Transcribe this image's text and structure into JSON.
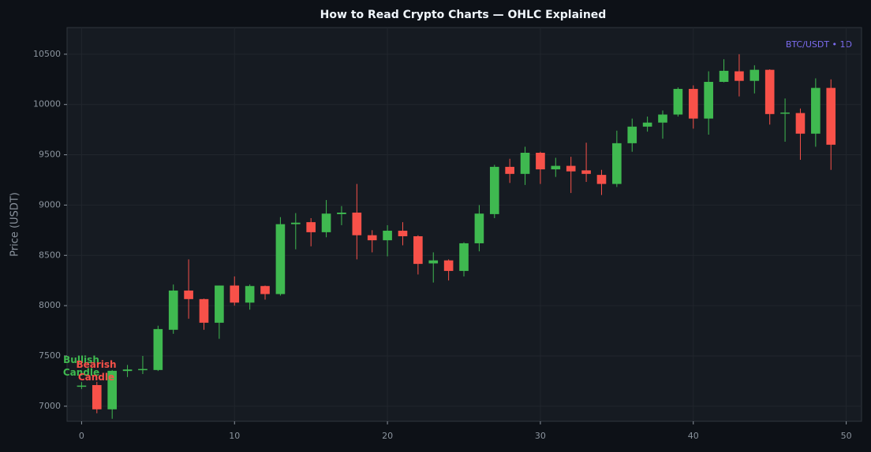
{
  "chart_data": {
    "type": "candlestick",
    "title": "How to Read Crypto Charts — OHLC Explained",
    "ylabel": "Price (USDT)",
    "label": "BTC/USDT • 1D",
    "label_color": "#7c6cf0",
    "up_color": "#3fb950",
    "down_color": "#f85149",
    "grid": true,
    "x": [
      0,
      1,
      2,
      3,
      4,
      5,
      6,
      7,
      8,
      9,
      10,
      11,
      12,
      13,
      14,
      15,
      16,
      17,
      18,
      19,
      20,
      21,
      22,
      23,
      24,
      25,
      26,
      27,
      28,
      29,
      30,
      31,
      32,
      33,
      34,
      35,
      36,
      37,
      38,
      39,
      40,
      41,
      42,
      43,
      44,
      45,
      46,
      47,
      48,
      49
    ],
    "open": [
      7195,
      7210,
      6969,
      7350,
      7360,
      7360,
      7760,
      8150,
      8065,
      7830,
      8200,
      8030,
      8195,
      8115,
      8810,
      8830,
      8730,
      8910,
      8925,
      8700,
      8650,
      8745,
      8690,
      8420,
      8450,
      8345,
      8620,
      8910,
      9380,
      9310,
      9520,
      9355,
      9390,
      9345,
      9300,
      9210,
      9615,
      9780,
      9820,
      9900,
      10155,
      9860,
      10225,
      10330,
      10235,
      10345,
      9910,
      9915,
      9710,
      10165
    ],
    "high": [
      7240,
      7243,
      7360,
      7410,
      7500,
      7800,
      8210,
      8460,
      8070,
      8200,
      8290,
      8210,
      8200,
      8880,
      8920,
      8870,
      9050,
      8990,
      9210,
      8750,
      8800,
      8830,
      8700,
      8530,
      8460,
      8630,
      9000,
      9400,
      9460,
      9580,
      9530,
      9470,
      9480,
      9620,
      9350,
      9740,
      9860,
      9880,
      9940,
      10170,
      10190,
      10330,
      10450,
      10500,
      10390,
      10350,
      10060,
      9960,
      10260,
      10250
    ],
    "low": [
      7170,
      6930,
      6875,
      7290,
      7320,
      7350,
      7720,
      7870,
      7760,
      7670,
      8000,
      7960,
      8060,
      8100,
      8560,
      8590,
      8680,
      8800,
      8460,
      8530,
      8490,
      8600,
      8310,
      8230,
      8250,
      8290,
      8540,
      8870,
      9220,
      9200,
      9210,
      9280,
      9120,
      9230,
      9100,
      9180,
      9530,
      9730,
      9660,
      9880,
      9760,
      9700,
      10220,
      10080,
      10110,
      9800,
      9630,
      9450,
      9580,
      9350
    ],
    "close": [
      7205,
      6969,
      7352,
      7365,
      7370,
      7767,
      8150,
      8065,
      7830,
      8200,
      8030,
      8195,
      8115,
      8810,
      8825,
      8730,
      8915,
      8925,
      8700,
      8650,
      8745,
      8690,
      8415,
      8450,
      8345,
      8620,
      8915,
      9380,
      9310,
      9520,
      9355,
      9390,
      9335,
      9310,
      9210,
      9615,
      9780,
      9820,
      9900,
      10155,
      9860,
      10225,
      10335,
      10235,
      10345,
      9905,
      9920,
      9710,
      10165,
      9600
    ],
    "xlim": [
      -0.95,
      51
    ],
    "xticks": [
      0,
      10,
      20,
      30,
      40,
      50
    ],
    "ylim": [
      6850,
      10765
    ],
    "yticks": [
      7000,
      7500,
      8000,
      8500,
      9000,
      9500,
      10000,
      10500
    ],
    "annotations": [
      {
        "lines": [
          "Bullish",
          "Candle"
        ],
        "color": "#3fb950"
      },
      {
        "lines": [
          "Bearish",
          "Candle"
        ],
        "color": "#f85149"
      }
    ]
  }
}
